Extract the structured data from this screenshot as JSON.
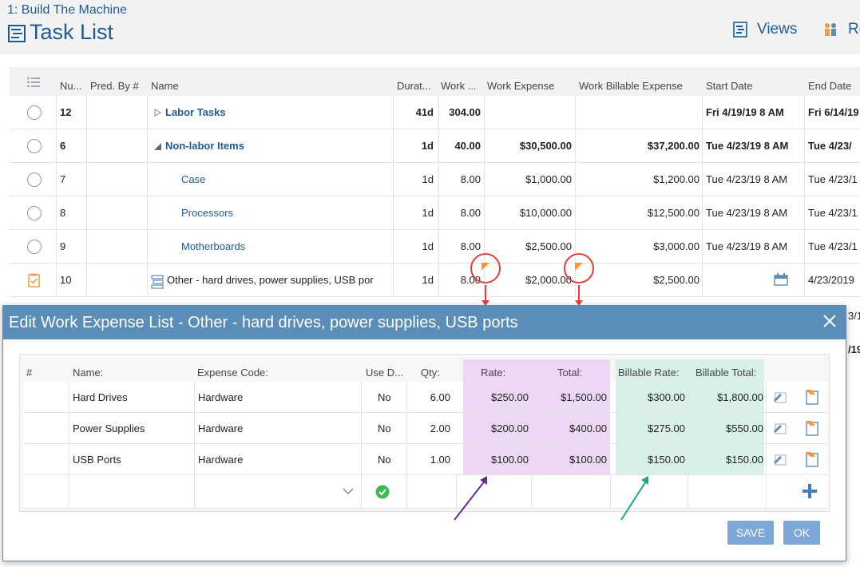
{
  "header": {
    "breadcrumb": "1: Build The Machine",
    "title": "Task List",
    "views_label": "Views",
    "re_label": "Re"
  },
  "grid": {
    "columns": [
      "Nu...",
      "Pred. By #",
      "Name",
      "Durat...",
      "Work ...",
      "Work Expense",
      "Work Billable Expense",
      "Start Date",
      "End Date"
    ],
    "rows": [
      {
        "num": "12",
        "pred": "",
        "name": "Labor Tasks",
        "duration": "41d",
        "work": "304.00",
        "expense": "",
        "billable": "",
        "start": "Fri 4/19/19 8 AM",
        "end": "Fri 6/14/19"
      },
      {
        "num": "6",
        "pred": "",
        "name": "Non-labor Items",
        "duration": "1d",
        "work": "40.00",
        "expense": "$30,500.00",
        "billable": "$37,200.00",
        "start": "Tue 4/23/19 8 AM",
        "end": "Tue 4/23/"
      },
      {
        "num": "7",
        "pred": "",
        "name": "Case",
        "duration": "1d",
        "work": "8.00",
        "expense": "$1,000.00",
        "billable": "$1,200.00",
        "start": "Tue 4/23/19 8 AM",
        "end": "Tue 4/23/1"
      },
      {
        "num": "8",
        "pred": "",
        "name": "Processors",
        "duration": "1d",
        "work": "8.00",
        "expense": "$10,000.00",
        "billable": "$12,500.00",
        "start": "Tue 4/23/19 8 AM",
        "end": "Tue 4/23/1"
      },
      {
        "num": "9",
        "pred": "",
        "name": "Motherboards",
        "duration": "1d",
        "work": "8.00",
        "expense": "$2,500.00",
        "billable": "$3,000.00",
        "start": "Tue 4/23/19 8 AM",
        "end": "Tue 4/23/1"
      },
      {
        "num": "10",
        "pred": "",
        "name": "Other - hard drives, power supplies, USB por",
        "duration": "1d",
        "work": "8.00",
        "expense": "$2,000.00",
        "billable": "$2,500.00",
        "start": "",
        "end": "4/23/2019"
      }
    ],
    "peek_right": [
      "3/1",
      "/19"
    ]
  },
  "modal": {
    "title": "Edit Work Expense List - Other - hard drives, power supplies, USB ports",
    "columns": [
      "#",
      "Name:",
      "Expense Code:",
      "Use D...",
      "Qty:",
      "Rate:",
      "Total:",
      "Billable Rate:",
      "Billable Total:"
    ],
    "rows": [
      {
        "name": "Hard Drives",
        "code": "Hardware",
        "use": "No",
        "qty": "6.00",
        "rate": "$250.00",
        "total": "$1,500.00",
        "brate": "$300.00",
        "btotal": "$1,800.00"
      },
      {
        "name": "Power Supplies",
        "code": "Hardware",
        "use": "No",
        "qty": "2.00",
        "rate": "$200.00",
        "total": "$400.00",
        "brate": "$275.00",
        "btotal": "$550.00"
      },
      {
        "name": "USB Ports",
        "code": "Hardware",
        "use": "No",
        "qty": "1.00",
        "rate": "$100.00",
        "total": "$100.00",
        "brate": "$150.00",
        "btotal": "$150.00"
      }
    ],
    "save_label": "SAVE",
    "ok_label": "OK"
  },
  "colors": {
    "accent": "#1f5b94",
    "modal_header": "#5b8db9",
    "rate_highlight": "#ecd8f5",
    "billable_highlight": "#d8f0e7",
    "marker": "#e0413b",
    "purple_arrow": "#6a2d8f",
    "teal_arrow": "#1aa88a"
  }
}
